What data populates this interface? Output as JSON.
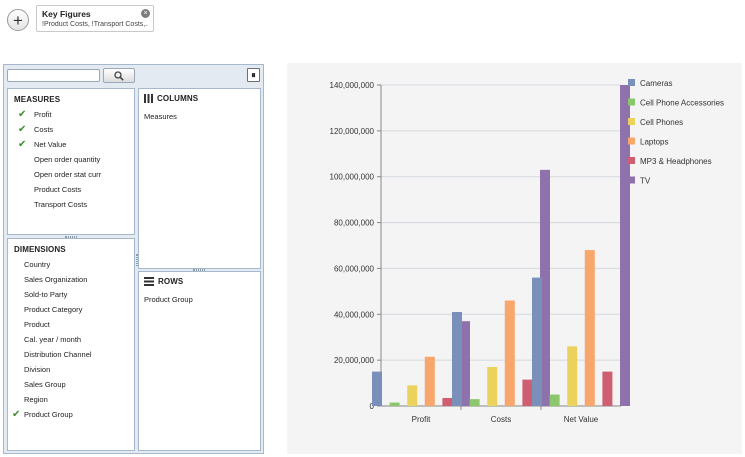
{
  "header": {
    "add_icon": "plus-icon",
    "key_figures": {
      "title": "Key Figures",
      "subtitle": "!Product Costs, !Transport Costs,..."
    }
  },
  "search": {
    "value": "",
    "placeholder": "",
    "button_icon": "search-icon"
  },
  "measures": {
    "title": "MEASURES",
    "items": [
      {
        "label": "Profit",
        "checked": true
      },
      {
        "label": "Costs",
        "checked": true
      },
      {
        "label": "Net Value",
        "checked": true
      },
      {
        "label": "Open order quantity",
        "checked": false
      },
      {
        "label": "Open order stat curr",
        "checked": false
      },
      {
        "label": "Product Costs",
        "checked": false
      },
      {
        "label": "Transport Costs",
        "checked": false
      }
    ]
  },
  "dimensions": {
    "title": "DIMENSIONS",
    "items": [
      {
        "label": "Country",
        "checked": false
      },
      {
        "label": "Sales Organization",
        "checked": false
      },
      {
        "label": "Sold-to Party",
        "checked": false
      },
      {
        "label": "Product Category",
        "checked": false
      },
      {
        "label": "Product",
        "checked": false
      },
      {
        "label": "Cal. year / month",
        "checked": false
      },
      {
        "label": "Distribution Channel",
        "checked": false
      },
      {
        "label": "Division",
        "checked": false
      },
      {
        "label": "Sales Group",
        "checked": false
      },
      {
        "label": "Region",
        "checked": false
      },
      {
        "label": "Product Group",
        "checked": true
      }
    ]
  },
  "columns": {
    "title": "COLUMNS",
    "fields": [
      "Measures"
    ]
  },
  "rows": {
    "title": "ROWS",
    "fields": [
      "Product Group"
    ]
  },
  "chart_data": {
    "type": "bar",
    "categories": [
      "Profit",
      "Costs",
      "Net Value"
    ],
    "series": [
      {
        "name": "Cameras",
        "color": "#7b8fbb",
        "values": [
          15000000,
          41000000,
          56000000
        ]
      },
      {
        "name": "Cell Phone Accessories",
        "color": "#8cc76b",
        "values": [
          1500000,
          3000000,
          5000000
        ]
      },
      {
        "name": "Cell Phones",
        "color": "#ead25c",
        "values": [
          9000000,
          17000000,
          26000000
        ]
      },
      {
        "name": "Laptops",
        "color": "#f8a66c",
        "values": [
          21500000,
          46000000,
          68000000
        ]
      },
      {
        "name": "MP3 & Headphones",
        "color": "#d05e73",
        "values": [
          3500000,
          11500000,
          15000000
        ]
      },
      {
        "name": "TV",
        "color": "#8f72ac",
        "values": [
          37000000,
          103000000,
          140000000
        ]
      }
    ],
    "ylim": [
      0,
      140000000
    ],
    "yticks": [
      "0",
      "20,000,000",
      "40,000,000",
      "60,000,000",
      "80,000,000",
      "100,000,000",
      "120,000,000",
      "140,000,000"
    ],
    "title": "",
    "xlabel": "",
    "ylabel": "",
    "grid": true,
    "legend": "right"
  }
}
